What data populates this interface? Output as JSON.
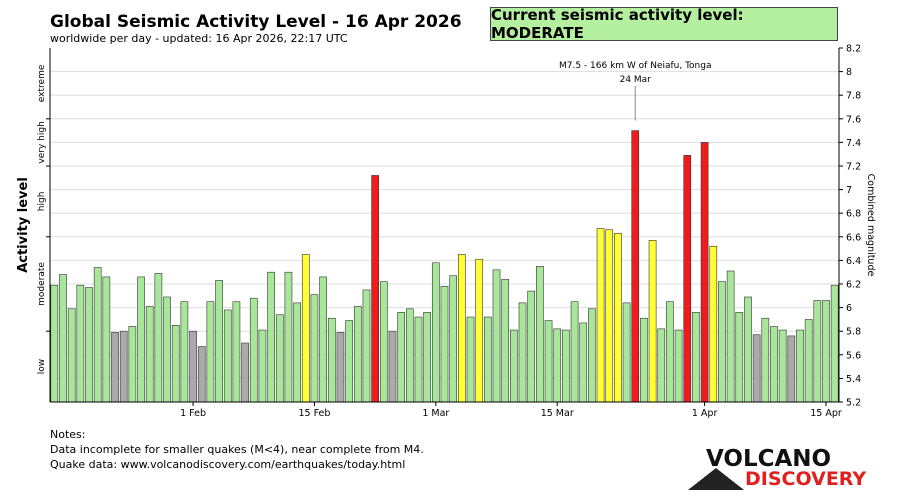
{
  "header": {
    "title": "Global Seismic Activity Level - 16 Apr 2026",
    "subtitle": "worldwide per day - updated: 16 Apr 2026, 22:17 UTC",
    "current_level": "Current seismic activity level: MODERATE"
  },
  "notes": {
    "heading": "Notes:",
    "line1": "Data incomplete for smaller quakes (M<4), near complete from M4.",
    "line2": "Quake data: www.volcanodiscovery.com/earthquakes/today.html"
  },
  "logo": {
    "line1": "VOLCANO",
    "line2": "DISCOVERY"
  },
  "colors": {
    "green": "#a8e69a",
    "gray": "#aaaaaa",
    "yellow": "#ffff33",
    "red": "#ee1c1c",
    "current_bg": "#b5efa0",
    "logo_red": "#e02020"
  },
  "chart_data": {
    "type": "bar",
    "title": "Global Seismic Activity Level - 16 Apr 2026",
    "ylabel_left": "Activity level",
    "ylabel_right": "Combined magnitude",
    "ylim": [
      5.2,
      8.2
    ],
    "yticks": [
      5.2,
      5.4,
      5.6,
      5.8,
      6.0,
      6.2,
      6.4,
      6.6,
      6.8,
      7.0,
      7.2,
      7.4,
      7.6,
      7.8,
      8.0,
      8.2
    ],
    "ytick_labels": [
      "5.2",
      "5.4",
      "5.6",
      "5.8",
      "6",
      "6.2",
      "6.4",
      "6.6",
      "6.8",
      "7",
      "7.2",
      "7.4",
      "7.6",
      "7.8",
      "8",
      "8.2"
    ],
    "level_bands": [
      {
        "label": "low",
        "from": 5.2,
        "to": 5.8
      },
      {
        "label": "moderate",
        "from": 5.8,
        "to": 6.6
      },
      {
        "label": "high",
        "from": 6.6,
        "to": 7.2
      },
      {
        "label": "very high",
        "from": 7.2,
        "to": 7.6
      },
      {
        "label": "extreme",
        "from": 7.6,
        "to": 8.2
      }
    ],
    "level_boundaries": [
      5.8,
      6.6,
      7.2,
      7.6
    ],
    "x_ticks": [
      {
        "index": 16,
        "label": "1 Feb"
      },
      {
        "index": 30,
        "label": "15 Feb"
      },
      {
        "index": 44,
        "label": "1 Mar"
      },
      {
        "index": 58,
        "label": "15 Mar"
      },
      {
        "index": 75,
        "label": "1 Apr"
      },
      {
        "index": 89,
        "label": "15 Apr"
      }
    ],
    "annotation": {
      "index": 67,
      "text": "M7.5 - 166 km W of Neiafu, Tonga",
      "date": "24 Mar",
      "value": 7.5
    },
    "bars": [
      {
        "v": 6.19,
        "c": "g"
      },
      {
        "v": 6.28,
        "c": "g"
      },
      {
        "v": 5.99,
        "c": "g"
      },
      {
        "v": 6.19,
        "c": "g"
      },
      {
        "v": 6.17,
        "c": "g"
      },
      {
        "v": 6.34,
        "c": "g"
      },
      {
        "v": 6.26,
        "c": "g"
      },
      {
        "v": 5.79,
        "c": "x"
      },
      {
        "v": 5.8,
        "c": "x"
      },
      {
        "v": 5.84,
        "c": "g"
      },
      {
        "v": 6.26,
        "c": "g"
      },
      {
        "v": 6.01,
        "c": "g"
      },
      {
        "v": 6.29,
        "c": "g"
      },
      {
        "v": 6.09,
        "c": "g"
      },
      {
        "v": 5.85,
        "c": "g"
      },
      {
        "v": 6.05,
        "c": "g"
      },
      {
        "v": 5.8,
        "c": "x"
      },
      {
        "v": 5.67,
        "c": "x"
      },
      {
        "v": 6.05,
        "c": "g"
      },
      {
        "v": 6.23,
        "c": "g"
      },
      {
        "v": 5.98,
        "c": "g"
      },
      {
        "v": 6.05,
        "c": "g"
      },
      {
        "v": 5.7,
        "c": "x"
      },
      {
        "v": 6.08,
        "c": "g"
      },
      {
        "v": 5.81,
        "c": "g"
      },
      {
        "v": 6.3,
        "c": "g"
      },
      {
        "v": 5.94,
        "c": "g"
      },
      {
        "v": 6.3,
        "c": "g"
      },
      {
        "v": 6.04,
        "c": "g"
      },
      {
        "v": 6.45,
        "c": "y"
      },
      {
        "v": 6.11,
        "c": "g"
      },
      {
        "v": 6.26,
        "c": "g"
      },
      {
        "v": 5.91,
        "c": "g"
      },
      {
        "v": 5.79,
        "c": "x"
      },
      {
        "v": 5.89,
        "c": "g"
      },
      {
        "v": 6.01,
        "c": "g"
      },
      {
        "v": 6.15,
        "c": "g"
      },
      {
        "v": 7.12,
        "c": "r"
      },
      {
        "v": 6.22,
        "c": "g"
      },
      {
        "v": 5.8,
        "c": "x"
      },
      {
        "v": 5.96,
        "c": "g"
      },
      {
        "v": 5.99,
        "c": "g"
      },
      {
        "v": 5.92,
        "c": "g"
      },
      {
        "v": 5.96,
        "c": "g"
      },
      {
        "v": 6.38,
        "c": "g"
      },
      {
        "v": 6.18,
        "c": "g"
      },
      {
        "v": 6.27,
        "c": "g"
      },
      {
        "v": 6.45,
        "c": "y"
      },
      {
        "v": 5.92,
        "c": "g"
      },
      {
        "v": 6.41,
        "c": "y"
      },
      {
        "v": 5.92,
        "c": "g"
      },
      {
        "v": 6.32,
        "c": "g"
      },
      {
        "v": 6.24,
        "c": "g"
      },
      {
        "v": 5.81,
        "c": "g"
      },
      {
        "v": 6.04,
        "c": "g"
      },
      {
        "v": 6.14,
        "c": "g"
      },
      {
        "v": 6.35,
        "c": "g"
      },
      {
        "v": 5.89,
        "c": "g"
      },
      {
        "v": 5.82,
        "c": "g"
      },
      {
        "v": 5.81,
        "c": "g"
      },
      {
        "v": 6.05,
        "c": "g"
      },
      {
        "v": 5.87,
        "c": "g"
      },
      {
        "v": 5.99,
        "c": "g"
      },
      {
        "v": 6.67,
        "c": "y"
      },
      {
        "v": 6.66,
        "c": "y"
      },
      {
        "v": 6.63,
        "c": "y"
      },
      {
        "v": 6.04,
        "c": "g"
      },
      {
        "v": 7.5,
        "c": "r"
      },
      {
        "v": 5.91,
        "c": "g"
      },
      {
        "v": 6.57,
        "c": "y"
      },
      {
        "v": 5.82,
        "c": "g"
      },
      {
        "v": 6.05,
        "c": "g"
      },
      {
        "v": 5.81,
        "c": "g"
      },
      {
        "v": 7.29,
        "c": "r"
      },
      {
        "v": 5.96,
        "c": "g"
      },
      {
        "v": 7.4,
        "c": "r"
      },
      {
        "v": 6.52,
        "c": "y"
      },
      {
        "v": 6.22,
        "c": "g"
      },
      {
        "v": 6.31,
        "c": "g"
      },
      {
        "v": 5.96,
        "c": "g"
      },
      {
        "v": 6.09,
        "c": "g"
      },
      {
        "v": 5.77,
        "c": "x"
      },
      {
        "v": 5.91,
        "c": "g"
      },
      {
        "v": 5.84,
        "c": "g"
      },
      {
        "v": 5.81,
        "c": "g"
      },
      {
        "v": 5.76,
        "c": "x"
      },
      {
        "v": 5.81,
        "c": "g"
      },
      {
        "v": 5.9,
        "c": "g"
      },
      {
        "v": 6.06,
        "c": "g"
      },
      {
        "v": 6.06,
        "c": "g"
      },
      {
        "v": 6.19,
        "c": "g"
      }
    ]
  }
}
